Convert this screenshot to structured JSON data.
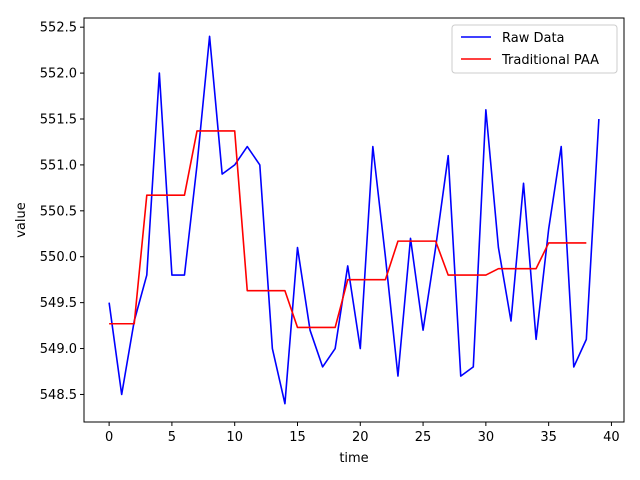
{
  "chart_data": {
    "type": "line",
    "title": "",
    "xlabel": "time",
    "ylabel": "value",
    "xlim": [
      -2,
      41
    ],
    "ylim": [
      548.2,
      552.6
    ],
    "xticks": [
      0,
      5,
      10,
      15,
      20,
      25,
      30,
      35,
      40
    ],
    "xtick_labels": [
      "0",
      "5",
      "10",
      "15",
      "20",
      "25",
      "30",
      "35",
      "40"
    ],
    "yticks": [
      548.5,
      549.0,
      549.5,
      550.0,
      550.5,
      551.0,
      551.5,
      552.0,
      552.5
    ],
    "ytick_labels": [
      "548.5",
      "549.0",
      "549.5",
      "550.0",
      "550.5",
      "551.0",
      "551.5",
      "552.0",
      "552.5"
    ],
    "grid": false,
    "legend_position": "top-right",
    "series": [
      {
        "name": "Raw Data",
        "color": "#0000ff",
        "x": [
          0,
          1,
          2,
          3,
          4,
          5,
          6,
          7,
          8,
          9,
          10,
          11,
          12,
          13,
          14,
          15,
          16,
          17,
          18,
          19,
          20,
          21,
          22,
          23,
          24,
          25,
          26,
          27,
          28,
          29,
          30,
          31,
          32,
          33,
          34,
          35,
          36,
          37,
          38,
          39
        ],
        "y": [
          549.5,
          548.5,
          549.3,
          549.8,
          552.0,
          549.8,
          549.8,
          551.0,
          552.4,
          550.9,
          551.0,
          551.2,
          551.0,
          549.0,
          548.4,
          550.1,
          549.2,
          548.8,
          549.0,
          549.9,
          549.0,
          551.2,
          550.0,
          548.7,
          550.2,
          549.2,
          550.1,
          551.1,
          548.7,
          548.8,
          551.6,
          550.1,
          549.3,
          550.8,
          549.1,
          550.3,
          551.2,
          548.8,
          549.1,
          551.5
        ]
      },
      {
        "name": "Traditional PAA",
        "color": "#ff0000",
        "x": [
          0,
          1,
          2,
          3,
          4,
          5,
          6,
          7,
          8,
          9,
          10,
          11,
          12,
          13,
          14,
          15,
          16,
          17,
          18,
          19,
          20,
          21,
          22,
          23,
          24,
          25,
          26,
          27,
          28,
          29,
          30,
          31,
          32,
          33,
          34,
          35,
          36,
          37,
          38
        ],
        "y": [
          549.27,
          549.27,
          549.27,
          550.67,
          550.67,
          550.67,
          550.67,
          551.37,
          551.37,
          551.37,
          551.37,
          549.63,
          549.63,
          549.63,
          549.63,
          549.23,
          549.23,
          549.23,
          549.23,
          549.75,
          549.75,
          549.75,
          549.75,
          550.17,
          550.17,
          550.17,
          550.17,
          549.8,
          549.8,
          549.8,
          549.8,
          549.87,
          549.87,
          549.87,
          549.87,
          550.15,
          550.15,
          550.15,
          550.15
        ]
      }
    ]
  }
}
